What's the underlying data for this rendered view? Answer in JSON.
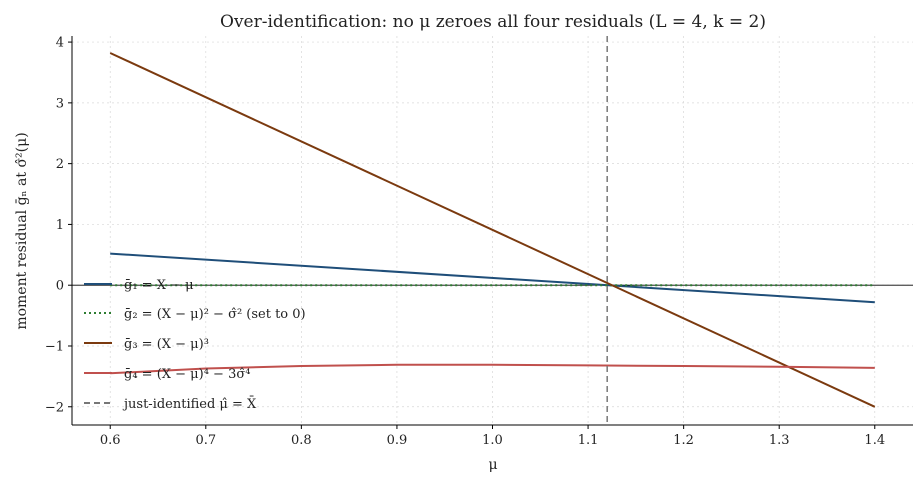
{
  "chart_data": {
    "type": "line",
    "title": "Over-identification: no μ zeroes all four residuals  (L = 4, k = 2)",
    "xlabel": "μ",
    "ylabel": "moment residual ḡₙ at σ̂²(μ)",
    "xlim": [
      0.56,
      1.44
    ],
    "ylim": [
      -2.3,
      4.1
    ],
    "xticks": [
      "0.6",
      "0.7",
      "0.8",
      "0.9",
      "1.0",
      "1.1",
      "1.2",
      "1.3",
      "1.4"
    ],
    "xtick_values": [
      0.6,
      0.7,
      0.8,
      0.9,
      1.0,
      1.1,
      1.2,
      1.3,
      1.4
    ],
    "yticks": [
      "−2",
      "−1",
      "0",
      "1",
      "2",
      "3",
      "4"
    ],
    "ytick_values": [
      -2,
      -1,
      0,
      1,
      2,
      3,
      4
    ],
    "grid": true,
    "legend_position": "center-left",
    "series": [
      {
        "name": "ḡ₁ = (X − μ) mean",
        "legend": "ḡ₁ = X − μ",
        "color": "#1f4e79",
        "style": "solid",
        "x": [
          0.6,
          1.4
        ],
        "y": [
          0.52,
          -0.28
        ]
      },
      {
        "name": "ḡ₂",
        "legend": "ḡ₂ = (X − μ)² − σ̂²  (set to 0)",
        "color": "#2e7d32",
        "style": "dotted",
        "x": [
          0.6,
          1.4
        ],
        "y": [
          0,
          0
        ]
      },
      {
        "name": "ḡ₃",
        "legend": "ḡ₃ = (X − μ)³",
        "color": "#7b3a0f",
        "style": "solid",
        "x": [
          0.6,
          1.4
        ],
        "y": [
          3.82,
          -2.0
        ]
      },
      {
        "name": "ḡ₄",
        "legend": "ḡ₄ = (X − μ)⁴ − 3σ̂⁴",
        "color": "#c0504d",
        "style": "solid",
        "x": [
          0.6,
          0.7,
          0.8,
          0.9,
          1.0,
          1.1,
          1.2,
          1.3,
          1.4
        ],
        "y": [
          -1.45,
          -1.37,
          -1.33,
          -1.31,
          -1.31,
          -1.32,
          -1.33,
          -1.34,
          -1.36
        ]
      }
    ],
    "vline": {
      "x": 1.12,
      "color": "#777777",
      "style": "dashed",
      "legend": "just-identified μ̂ = X̄"
    },
    "hline": {
      "y": 0,
      "color": "#000000"
    }
  }
}
